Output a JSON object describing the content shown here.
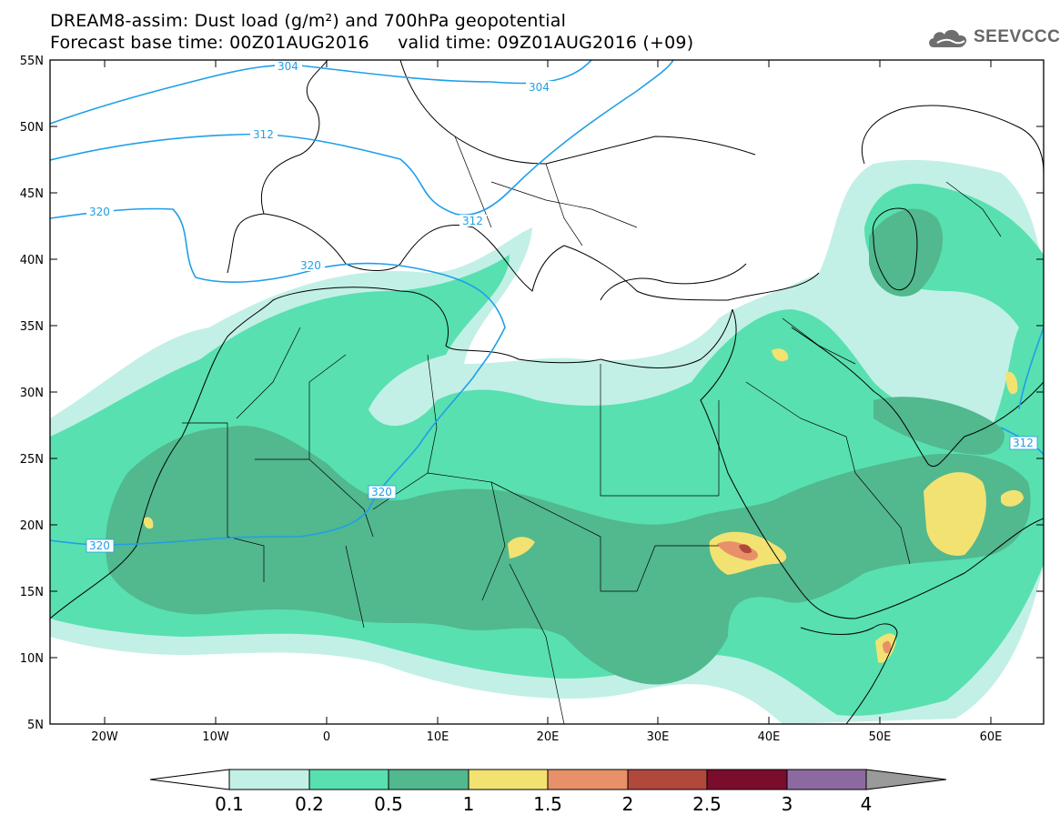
{
  "title": {
    "line1": "DREAM8-assim: Dust load (g/m²) and 700hPa geopotential",
    "line2": "Forecast base time: 00Z01AUG2016     valid time: 09Z01AUG2016 (+09)"
  },
  "logo": {
    "text": "SEEVCCC",
    "icon": "cloud-icon"
  },
  "map": {
    "lat_labels": [
      "55N",
      "50N",
      "45N",
      "40N",
      "35N",
      "30N",
      "25N",
      "20N",
      "15N",
      "10N",
      "5N"
    ],
    "lon_labels": [
      "20W",
      "10W",
      "0",
      "10E",
      "20E",
      "30E",
      "40E",
      "50E",
      "60E"
    ],
    "contour_labels": [
      "304",
      "304",
      "312",
      "312",
      "312",
      "320",
      "320",
      "320",
      "320"
    ],
    "colors": {
      "level_0_1": "#c2f0e6",
      "level_0_2": "#58e0b0",
      "level_0_5": "#52b88e",
      "level_1": "#f2e272",
      "level_1_5": "#e8906a",
      "level_2": "#b0483c",
      "contour": "#1f9fe8"
    }
  },
  "colorbar": {
    "labels": [
      "0.1",
      "0.2",
      "0.5",
      "1",
      "1.5",
      "2",
      "2.5",
      "3",
      "4"
    ],
    "colors": [
      "#c2f0e6",
      "#58e0b0",
      "#52b88e",
      "#f2e272",
      "#e8906a",
      "#b0483c",
      "#7a0c2c",
      "#8c6aa0"
    ],
    "under_color": "#ffffff",
    "over_color": "#9a9a9a"
  }
}
